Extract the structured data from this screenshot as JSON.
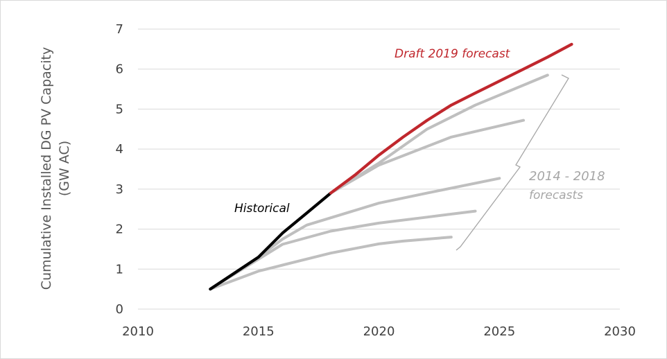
{
  "chart_data": {
    "type": "line",
    "title": "",
    "xlabel": "",
    "ylabel": "Cumulative Installed DG PV Capacity (GW AC)",
    "ylabel_lines": [
      "Cumulative Installed DG PV Capacity",
      "(GW AC)"
    ],
    "xlim": [
      2010,
      2030
    ],
    "ylim": [
      0,
      7
    ],
    "x_ticks": [
      2010,
      2015,
      2020,
      2025,
      2030
    ],
    "y_ticks": [
      0,
      1,
      2,
      3,
      4,
      5,
      6,
      7
    ],
    "grid": "horizontal",
    "legend": "none",
    "series": [
      {
        "role": "forecast-a",
        "color": "#bfbfbf",
        "points": [
          [
            2013,
            0.5
          ],
          [
            2015,
            0.95
          ],
          [
            2016,
            1.1
          ],
          [
            2018,
            1.4
          ],
          [
            2020,
            1.63
          ],
          [
            2021,
            1.7
          ],
          [
            2023,
            1.8
          ]
        ]
      },
      {
        "role": "forecast-b",
        "color": "#bfbfbf",
        "points": [
          [
            2013,
            0.5
          ],
          [
            2015,
            1.25
          ],
          [
            2016,
            1.62
          ],
          [
            2018,
            1.95
          ],
          [
            2020,
            2.15
          ],
          [
            2022,
            2.3
          ],
          [
            2024,
            2.45
          ]
        ]
      },
      {
        "role": "forecast-c",
        "color": "#bfbfbf",
        "points": [
          [
            2013,
            0.5
          ],
          [
            2015,
            1.3
          ],
          [
            2016,
            1.75
          ],
          [
            2017,
            2.1
          ],
          [
            2020,
            2.65
          ],
          [
            2022,
            2.9
          ],
          [
            2025,
            3.27
          ]
        ]
      },
      {
        "role": "forecast-d",
        "color": "#bfbfbf",
        "points": [
          [
            2018,
            2.9
          ],
          [
            2020,
            3.6
          ],
          [
            2023,
            4.3
          ],
          [
            2026,
            4.72
          ]
        ]
      },
      {
        "role": "forecast-e",
        "color": "#bfbfbf",
        "points": [
          [
            2018,
            2.9
          ],
          [
            2020,
            3.65
          ],
          [
            2022,
            4.5
          ],
          [
            2024,
            5.1
          ],
          [
            2027,
            5.85
          ]
        ]
      },
      {
        "role": "historical",
        "color": "#000000",
        "points": [
          [
            2013,
            0.5
          ],
          [
            2014,
            0.9
          ],
          [
            2015,
            1.3
          ],
          [
            2016,
            1.9
          ],
          [
            2017,
            2.4
          ],
          [
            2018,
            2.9
          ]
        ]
      },
      {
        "role": "draft-2019",
        "color": "#c0272d",
        "points": [
          [
            2018,
            2.9
          ],
          [
            2019,
            3.35
          ],
          [
            2020,
            3.85
          ],
          [
            2021,
            4.3
          ],
          [
            2022,
            4.72
          ],
          [
            2023,
            5.1
          ],
          [
            2024,
            5.4
          ],
          [
            2025,
            5.7
          ],
          [
            2026,
            6.0
          ],
          [
            2027,
            6.3
          ],
          [
            2028,
            6.62
          ]
        ]
      }
    ],
    "annotations": {
      "draft": {
        "text": "Draft 2019 forecast",
        "color": "#c0272d"
      },
      "historical": {
        "text": "Historical",
        "color": "#000000"
      },
      "forecasts_line1": {
        "text": "2014 - 2018",
        "color": "#a6a6a6"
      },
      "forecasts_line2": {
        "text": "forecasts",
        "color": "#a6a6a6"
      }
    }
  }
}
